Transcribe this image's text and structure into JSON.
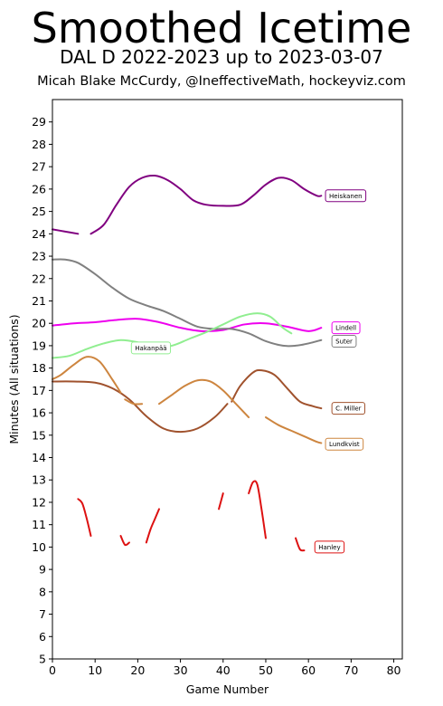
{
  "header": {
    "title": "Smoothed Icetime",
    "subtitle": "DAL D 2022-2023 up to 2023-03-07",
    "credit": "Micah Blake McCurdy, @IneffectiveMath, hockeyviz.com"
  },
  "chart_data": {
    "type": "line",
    "xlabel": "Game Number",
    "ylabel": "Minutes (All situations)",
    "xlim": [
      0,
      82
    ],
    "ylim": [
      5,
      30
    ],
    "xticks": [
      0,
      10,
      20,
      30,
      40,
      50,
      60,
      70,
      80
    ],
    "yticks": [
      5,
      6,
      7,
      8,
      9,
      10,
      11,
      12,
      13,
      14,
      15,
      16,
      17,
      18,
      19,
      20,
      21,
      22,
      23,
      24,
      25,
      26,
      27,
      28,
      29
    ],
    "grid": false,
    "series": [
      {
        "name": "Heiskanen",
        "color": "#800080",
        "label_at": [
          64,
          25.7
        ],
        "segments": [
          [
            [
              0,
              24.2
            ],
            [
              3,
              24.1
            ],
            [
              6,
              24.0
            ]
          ],
          [
            [
              9,
              24.0
            ],
            [
              12,
              24.4
            ],
            [
              15,
              25.3
            ],
            [
              18,
              26.1
            ],
            [
              21,
              26.5
            ],
            [
              24,
              26.6
            ],
            [
              27,
              26.4
            ],
            [
              30,
              26.0
            ],
            [
              33,
              25.5
            ],
            [
              36,
              25.3
            ],
            [
              40,
              25.25
            ],
            [
              44,
              25.3
            ],
            [
              47,
              25.7
            ],
            [
              50,
              26.2
            ],
            [
              53,
              26.5
            ],
            [
              56,
              26.4
            ],
            [
              59,
              26.0
            ],
            [
              62,
              25.7
            ],
            [
              63,
              25.7
            ]
          ]
        ]
      },
      {
        "name": "Lindell",
        "color": "#ee00ee",
        "label_at": [
          65.5,
          19.8
        ],
        "segments": [
          [
            [
              0,
              19.9
            ],
            [
              5,
              20.0
            ],
            [
              10,
              20.05
            ],
            [
              15,
              20.15
            ],
            [
              20,
              20.2
            ],
            [
              25,
              20.05
            ],
            [
              30,
              19.8
            ],
            [
              35,
              19.65
            ],
            [
              40,
              19.7
            ],
            [
              45,
              19.95
            ],
            [
              50,
              20.0
            ],
            [
              55,
              19.85
            ],
            [
              60,
              19.65
            ],
            [
              63,
              19.8
            ]
          ]
        ]
      },
      {
        "name": "Suter",
        "color": "#808080",
        "label_at": [
          65.5,
          19.2
        ],
        "segments": [
          [
            [
              0,
              22.85
            ],
            [
              3,
              22.85
            ],
            [
              6,
              22.7
            ],
            [
              10,
              22.2
            ],
            [
              14,
              21.6
            ],
            [
              18,
              21.1
            ],
            [
              22,
              20.8
            ],
            [
              26,
              20.55
            ],
            [
              30,
              20.2
            ],
            [
              34,
              19.85
            ],
            [
              38,
              19.75
            ],
            [
              42,
              19.75
            ],
            [
              46,
              19.55
            ],
            [
              50,
              19.2
            ],
            [
              54,
              19.0
            ],
            [
              57,
              19.0
            ],
            [
              60,
              19.1
            ],
            [
              63,
              19.25
            ]
          ]
        ]
      },
      {
        "name": "Hakanpää",
        "color": "#90ee90",
        "label_at": [
          18.5,
          18.9
        ],
        "segments": [
          [
            [
              0,
              18.45
            ],
            [
              4,
              18.55
            ],
            [
              8,
              18.85
            ],
            [
              12,
              19.1
            ],
            [
              16,
              19.25
            ],
            [
              20,
              19.15
            ],
            [
              24,
              18.95
            ],
            [
              28,
              19.0
            ],
            [
              32,
              19.3
            ],
            [
              36,
              19.6
            ],
            [
              40,
              19.95
            ],
            [
              44,
              20.3
            ],
            [
              48,
              20.45
            ],
            [
              51,
              20.3
            ],
            [
              54,
              19.8
            ],
            [
              56,
              19.55
            ]
          ]
        ]
      },
      {
        "name": "C. Miller",
        "color": "#a0522d",
        "label_at": [
          65.5,
          16.2
        ],
        "segments": [
          [
            [
              0,
              17.4
            ],
            [
              5,
              17.4
            ],
            [
              10,
              17.35
            ],
            [
              14,
              17.1
            ],
            [
              18,
              16.6
            ],
            [
              22,
              15.85
            ],
            [
              26,
              15.3
            ],
            [
              30,
              15.15
            ],
            [
              34,
              15.3
            ],
            [
              38,
              15.8
            ],
            [
              41,
              16.4
            ]
          ],
          [
            [
              42,
              16.5
            ],
            [
              44,
              17.2
            ],
            [
              47,
              17.8
            ],
            [
              49,
              17.9
            ],
            [
              52,
              17.7
            ],
            [
              55,
              17.1
            ],
            [
              58,
              16.5
            ],
            [
              61,
              16.3
            ],
            [
              63,
              16.2
            ]
          ]
        ]
      },
      {
        "name": "Lundkvist",
        "color": "#cd853f",
        "label_at": [
          64,
          14.6
        ],
        "segments": [
          [
            [
              0,
              17.5
            ],
            [
              2,
              17.7
            ],
            [
              5,
              18.15
            ],
            [
              8,
              18.5
            ],
            [
              11,
              18.3
            ],
            [
              14,
              17.5
            ],
            [
              16,
              16.9
            ]
          ],
          [
            [
              17,
              16.6
            ],
            [
              19,
              16.4
            ],
            [
              21,
              16.4
            ]
          ],
          [
            [
              25,
              16.4
            ],
            [
              28,
              16.8
            ],
            [
              31,
              17.2
            ],
            [
              34,
              17.45
            ],
            [
              37,
              17.4
            ],
            [
              40,
              17.0
            ],
            [
              43,
              16.4
            ],
            [
              46,
              15.8
            ]
          ],
          [
            [
              50,
              15.8
            ],
            [
              53,
              15.45
            ],
            [
              56,
              15.2
            ],
            [
              59,
              14.95
            ],
            [
              62,
              14.7
            ],
            [
              63,
              14.65
            ]
          ]
        ]
      },
      {
        "name": "Hanley",
        "color": "#dd1111",
        "label_at": [
          61.5,
          10.0
        ],
        "segments": [
          [
            [
              6,
              12.15
            ],
            [
              7,
              11.95
            ],
            [
              8,
              11.3
            ],
            [
              9,
              10.5
            ]
          ],
          [
            [
              16,
              10.5
            ],
            [
              17,
              10.1
            ],
            [
              18,
              10.2
            ]
          ],
          [
            [
              22,
              10.2
            ],
            [
              23,
              10.8
            ],
            [
              24,
              11.25
            ],
            [
              25,
              11.7
            ]
          ],
          [
            [
              39,
              11.7
            ],
            [
              40,
              12.4
            ]
          ],
          [
            [
              46,
              12.4
            ],
            [
              47,
              12.9
            ],
            [
              48,
              12.8
            ],
            [
              49,
              11.7
            ],
            [
              50,
              10.4
            ]
          ],
          [
            [
              57,
              10.4
            ],
            [
              58,
              9.9
            ],
            [
              59,
              9.85
            ]
          ]
        ]
      }
    ]
  }
}
